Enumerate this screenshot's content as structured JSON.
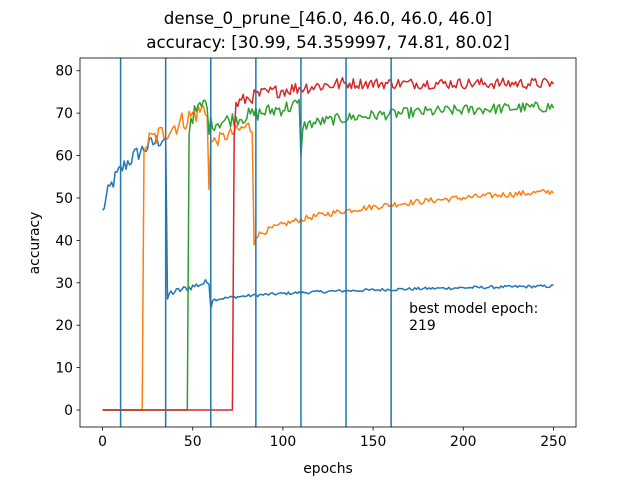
{
  "chart_data": {
    "type": "line",
    "title_lines": [
      "dense_0_prune_[46.0, 46.0, 46.0, 46.0]",
      "accuracy: [30.99, 54.359997, 74.81, 80.02]"
    ],
    "xlabel": "epochs",
    "ylabel": "accuracy",
    "xlim": [
      -12.5,
      262.5
    ],
    "ylim": [
      -4.0,
      83.0
    ],
    "xticks": [
      0,
      50,
      100,
      150,
      200,
      250
    ],
    "yticks": [
      0,
      10,
      20,
      30,
      40,
      50,
      60,
      70,
      80
    ],
    "vlines": [
      10,
      35,
      60,
      85,
      110,
      135,
      160
    ],
    "vline_color": "#1f77b4",
    "annotation": {
      "lines": [
        "best model epoch:",
        "219"
      ],
      "x": 170,
      "y": 24
    },
    "series": [
      {
        "color": "#1f77b4",
        "start": 0,
        "segments": [
          {
            "to": 33,
            "y0": 46.5,
            "y1": 64.0,
            "noise": 2.0,
            "shape": "log"
          },
          {
            "to": 35,
            "y0": 64.0,
            "y1": 64.0,
            "noise": 1.0
          },
          {
            "to": 36,
            "y0": 26.0,
            "y1": 26.0,
            "noise": 0.2
          },
          {
            "to": 57,
            "y0": 27.5,
            "y1": 30.0,
            "noise": 0.8
          },
          {
            "to": 59,
            "y0": 30.0,
            "y1": 30.0,
            "noise": 0.3
          },
          {
            "to": 60,
            "y0": 24.0,
            "y1": 24.0,
            "noise": 0.2
          },
          {
            "to": 250,
            "y0": 26.0,
            "y1": 29.2,
            "noise": 0.35,
            "shape": "log"
          }
        ]
      },
      {
        "color": "#ff7f0e",
        "start": 0,
        "segments": [
          {
            "to": 22,
            "y0": 0,
            "y1": 0,
            "noise": 0
          },
          {
            "to": 23,
            "y0": 61.0,
            "y1": 61.0,
            "noise": 0
          },
          {
            "to": 56,
            "y0": 63.0,
            "y1": 71.0,
            "noise": 2.5
          },
          {
            "to": 58,
            "y0": 70.0,
            "y1": 70.0,
            "noise": 1.0
          },
          {
            "to": 59,
            "y0": 52.0,
            "y1": 52.0,
            "noise": 0
          },
          {
            "to": 81,
            "y0": 63.0,
            "y1": 67.0,
            "noise": 1.5
          },
          {
            "to": 83,
            "y0": 66.0,
            "y1": 66.0,
            "noise": 1.0
          },
          {
            "to": 84,
            "y0": 39.0,
            "y1": 39.0,
            "noise": 0
          },
          {
            "to": 250,
            "y0": 41.0,
            "y1": 51.5,
            "noise": 0.7,
            "shape": "log"
          }
        ]
      },
      {
        "color": "#2ca02c",
        "start": 0,
        "segments": [
          {
            "to": 47,
            "y0": 0,
            "y1": 0,
            "noise": 0
          },
          {
            "to": 48,
            "y0": 65.0,
            "y1": 65.0,
            "noise": 0
          },
          {
            "to": 58,
            "y0": 69.0,
            "y1": 73.0,
            "noise": 2.0
          },
          {
            "to": 59,
            "y0": 65.0,
            "y1": 65.0,
            "noise": 0
          },
          {
            "to": 109,
            "y0": 67.5,
            "y1": 72.0,
            "noise": 1.8
          },
          {
            "to": 110,
            "y0": 60.0,
            "y1": 60.0,
            "noise": 0
          },
          {
            "to": 250,
            "y0": 67.0,
            "y1": 71.5,
            "noise": 1.3,
            "shape": "log"
          }
        ]
      },
      {
        "color": "#d62728",
        "start": 0,
        "segments": [
          {
            "to": 72,
            "y0": 0,
            "y1": 0,
            "noise": 0
          },
          {
            "to": 73,
            "y0": 65.0,
            "y1": 65.0,
            "noise": 0
          },
          {
            "to": 135,
            "y0": 72.0,
            "y1": 77.0,
            "noise": 1.6,
            "shape": "log"
          },
          {
            "to": 250,
            "y0": 77.0,
            "y1": 77.0,
            "noise": 1.3
          }
        ]
      }
    ]
  }
}
